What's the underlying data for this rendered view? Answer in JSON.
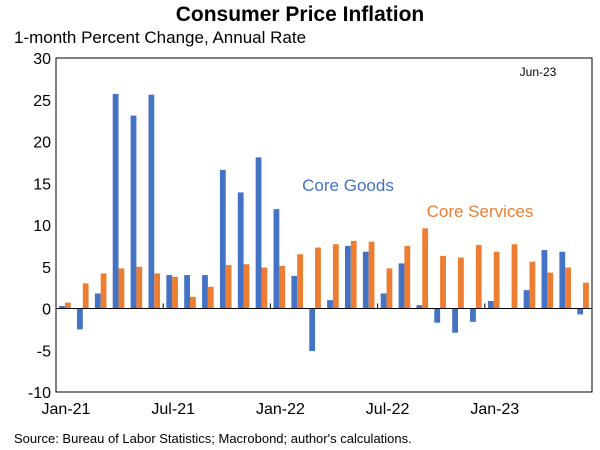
{
  "chart_data": {
    "type": "bar",
    "title": "Consumer Price Inflation",
    "subtitle": "1-month Percent Change, Annual Rate",
    "source": "Source: Bureau of Labor Statistics; Macrobond; author's calculations.",
    "corner_label": "Jun-23",
    "xlabel": "",
    "ylabel": "",
    "ylim": [
      -10,
      30
    ],
    "yticks": [
      -10,
      -5,
      0,
      5,
      10,
      15,
      20,
      25,
      30
    ],
    "xticks": [
      {
        "label": "Jan-21",
        "index": 0
      },
      {
        "label": "Jul-21",
        "index": 6
      },
      {
        "label": "Jan-22",
        "index": 12
      },
      {
        "label": "Jul-22",
        "index": 18
      },
      {
        "label": "Jan-23",
        "index": 24
      }
    ],
    "categories": [
      "Jan-21",
      "Feb-21",
      "Mar-21",
      "Apr-21",
      "May-21",
      "Jun-21",
      "Jul-21",
      "Aug-21",
      "Sep-21",
      "Oct-21",
      "Nov-21",
      "Dec-21",
      "Jan-22",
      "Feb-22",
      "Mar-22",
      "Apr-22",
      "May-22",
      "Jun-22",
      "Jul-22",
      "Aug-22",
      "Sep-22",
      "Oct-22",
      "Nov-22",
      "Dec-22",
      "Jan-23",
      "Feb-23",
      "Mar-23",
      "Apr-23",
      "May-23",
      "Jun-23"
    ],
    "series": [
      {
        "name": "Core Goods",
        "color": "#4472C4",
        "values": [
          0.3,
          -2.5,
          1.8,
          25.7,
          23.1,
          25.6,
          4.0,
          4.0,
          4.0,
          16.6,
          13.9,
          18.1,
          11.9,
          3.9,
          -5.1,
          1.0,
          7.5,
          6.8,
          1.8,
          5.4,
          0.4,
          -1.7,
          -2.9,
          -1.6,
          0.9,
          0.0,
          2.2,
          7.0,
          6.8,
          -0.7
        ]
      },
      {
        "name": "Core Services",
        "color": "#ED7D31",
        "values": [
          0.7,
          3.0,
          4.2,
          4.8,
          5.0,
          4.2,
          3.8,
          1.4,
          2.6,
          5.2,
          5.3,
          4.9,
          5.1,
          6.5,
          7.3,
          7.7,
          8.1,
          8.0,
          4.8,
          7.5,
          9.6,
          6.3,
          6.1,
          7.6,
          6.8,
          7.7,
          5.6,
          4.3,
          4.9,
          3.1
        ]
      }
    ],
    "series_label_positions": [
      "upper-middle",
      "middle-right"
    ]
  }
}
